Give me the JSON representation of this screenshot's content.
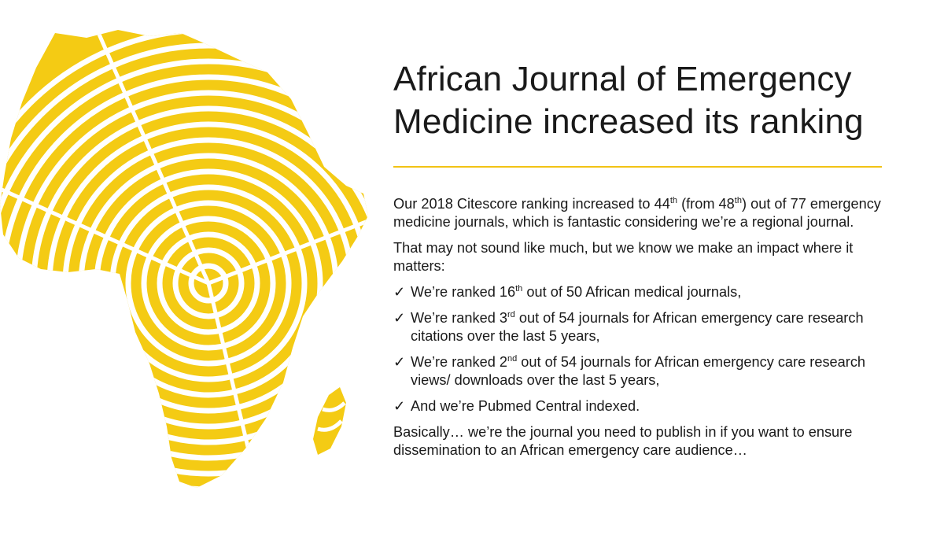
{
  "slide": {
    "title_line1": "African Journal of Emergency",
    "title_line2": "Medicine increased its ranking",
    "accent_color": "#f2c315",
    "map_color": "#f4cb14",
    "map_icon": "africa-map-rings",
    "para1": {
      "a": "Our 2018 Citescore ranking increased to 44",
      "sup1": "th",
      "b": " (from 48",
      "sup2": "th",
      "c": ") out of 77 emergency medicine journals, which is fantastic considering we’re a regional journal."
    },
    "para2": "That may not sound like much, but we know we make an impact where it matters:",
    "checkmark": "✓",
    "bullets": [
      {
        "pre": "We’re ranked 16",
        "sup": "th",
        "post": " out of 50 African medical journals,"
      },
      {
        "pre": "We’re ranked 3",
        "sup": "rd",
        "post": " out of 54 journals for African emergency care research citations over the last 5 years,"
      },
      {
        "pre": "We’re ranked 2",
        "sup": "nd",
        "post": " out of 54 journals for African emergency care research views/ downloads over the last 5 years,"
      },
      {
        "pre": "And we’re Pubmed Central indexed.",
        "sup": "",
        "post": ""
      }
    ],
    "para3": "Basically… we’re the journal you need to publish in if you want to ensure dissemination to an African emergency care audience…"
  }
}
